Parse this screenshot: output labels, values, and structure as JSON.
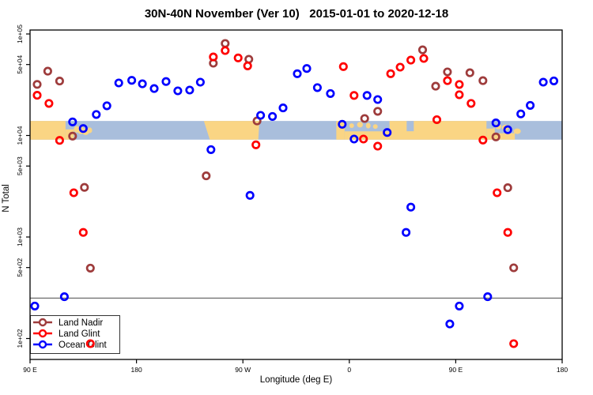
{
  "chart_data": {
    "type": "scatter",
    "title": "30N-40N November (Ver 10)   2015-01-01 to 2020-12-18",
    "xlabel": "Longitude (deg E)",
    "ylabel": "N Total",
    "x_axis": {
      "min": 90,
      "max": 540,
      "note": "longitude axis wraps eastward: 90E to 180, 90W, 0, 90E, 180",
      "ticks": [
        {
          "lon": 90,
          "label": "90 E"
        },
        {
          "lon": 180,
          "label": "180"
        },
        {
          "lon": 270,
          "label": "90 W"
        },
        {
          "lon": 360,
          "label": "0"
        },
        {
          "lon": 450,
          "label": "90 E"
        },
        {
          "lon": 540,
          "label": "180"
        }
      ]
    },
    "y_axis": {
      "scale": "log",
      "range": [
        62,
        110000
      ],
      "ticks": [
        {
          "value": 100000,
          "label": "1e+05"
        },
        {
          "value": 50000,
          "label": "5e+04"
        },
        {
          "value": 10000,
          "label": "1e+04"
        },
        {
          "value": 5000,
          "label": "5e+03"
        },
        {
          "value": 1000,
          "label": "1e+03"
        },
        {
          "value": 500,
          "label": "5e+02"
        },
        {
          "value": 100,
          "label": "1e+02"
        }
      ]
    },
    "threshold_line": {
      "value": 250,
      "color": "#6E6E6E"
    },
    "map_band": {
      "value_top": 13900,
      "value_bottom": 9100,
      "ocean_color": "#A9BEDC",
      "land_color": "#FAD584",
      "land_shapes": [
        {
          "type": "band",
          "lon0": 90,
          "lon1": 120,
          "f0": 0,
          "f1": 1
        },
        {
          "type": "band",
          "lon0": 120,
          "lon1": 127,
          "f0": 0.45,
          "f1": 1
        },
        {
          "type": "island",
          "lon": 129.5,
          "f": 0.45,
          "w": 2.5,
          "h": 0.35
        },
        {
          "type": "island",
          "lon": 133,
          "f": 0.5,
          "w": 3,
          "h": 0.4
        },
        {
          "type": "island",
          "lon": 137,
          "f": 0.58,
          "w": 3,
          "h": 0.35
        },
        {
          "type": "island",
          "lon": 140.5,
          "f": 0.5,
          "w": 2,
          "h": 0.3
        },
        {
          "type": "trap",
          "lon0t": 237,
          "lon1t": 284,
          "lon0b": 242,
          "lon1b": 283
        },
        {
          "type": "band",
          "lon0": 349,
          "lon1": 356,
          "f0": 0,
          "f1": 1
        },
        {
          "type": "band",
          "lon0": 356,
          "lon1": 394,
          "f0": 0.5,
          "f1": 1,
          "jag": true
        },
        {
          "type": "island",
          "lon": 362,
          "f": 0.25,
          "w": 2,
          "h": 0.25
        },
        {
          "type": "island",
          "lon": 369,
          "f": 0.2,
          "w": 2.5,
          "h": 0.3
        },
        {
          "type": "island",
          "lon": 376,
          "f": 0.25,
          "w": 2,
          "h": 0.3
        },
        {
          "type": "island",
          "lon": 382,
          "f": 0.3,
          "w": 2,
          "h": 0.25
        },
        {
          "type": "band",
          "lon0": 394,
          "lon1": 476,
          "f0": 0,
          "f1": 1
        },
        {
          "type": "water",
          "lon0": 408.5,
          "lon1": 414.5,
          "f0": 0,
          "f1": 0.55
        },
        {
          "type": "band",
          "lon0": 476,
          "lon1": 483,
          "f0": 0.35,
          "f1": 1,
          "jag": true
        },
        {
          "type": "band",
          "lon0": 483,
          "lon1": 500,
          "f0": 0.6,
          "f1": 1,
          "jag": true
        },
        {
          "type": "island",
          "lon": 486,
          "f": 0.3,
          "w": 2.5,
          "h": 0.3
        },
        {
          "type": "island",
          "lon": 492,
          "f": 0.35,
          "w": 3,
          "h": 0.3
        },
        {
          "type": "island",
          "lon": 502,
          "f": 0.55,
          "w": 3,
          "h": 0.3
        }
      ]
    },
    "legend": {
      "entries": [
        {
          "label": "Land Nadir",
          "color": "#9E3C3C"
        },
        {
          "label": "Land Glint",
          "color": "#FF0000"
        },
        {
          "label": "Ocean Glint",
          "color": "#0000FF"
        }
      ]
    },
    "series": [
      {
        "name": "Land Nadir",
        "color": "#9E3C3C",
        "points": [
          [
            96,
            31900
          ],
          [
            105,
            43000
          ],
          [
            115,
            34400
          ],
          [
            126,
            9860
          ],
          [
            136,
            3080
          ],
          [
            141,
            494
          ],
          [
            239,
            4000
          ],
          [
            245,
            51500
          ],
          [
            255,
            80700
          ],
          [
            275,
            56400
          ],
          [
            282,
            13900
          ],
          [
            373,
            14700
          ],
          [
            384,
            17300
          ],
          [
            422,
            69800
          ],
          [
            433,
            30600
          ],
          [
            443,
            42300
          ],
          [
            462,
            41500
          ],
          [
            473,
            34700
          ],
          [
            484,
            9690
          ],
          [
            494,
            3060
          ],
          [
            499,
            497
          ]
        ]
      },
      {
        "name": "Land Glint",
        "color": "#FF0000",
        "points": [
          [
            96,
            24900
          ],
          [
            106,
            20700
          ],
          [
            115,
            8950
          ],
          [
            127,
            2730
          ],
          [
            135,
            1110
          ],
          [
            141,
            89
          ],
          [
            245,
            59400
          ],
          [
            255,
            68700
          ],
          [
            266,
            58100
          ],
          [
            274,
            48500
          ],
          [
            281,
            8090
          ],
          [
            355,
            47700
          ],
          [
            364,
            24800
          ],
          [
            372,
            9230
          ],
          [
            384,
            7850
          ],
          [
            395,
            40600
          ],
          [
            403,
            47100
          ],
          [
            412,
            55300
          ],
          [
            423,
            57400
          ],
          [
            434,
            14300
          ],
          [
            443,
            34700
          ],
          [
            453,
            31800
          ],
          [
            453,
            25200
          ],
          [
            463,
            20700
          ],
          [
            473,
            9010
          ],
          [
            485,
            2730
          ],
          [
            494,
            1110
          ],
          [
            499,
            89
          ]
        ]
      },
      {
        "name": "Ocean Glint",
        "color": "#0000FF",
        "points": [
          [
            94,
            209
          ],
          [
            119,
            258
          ],
          [
            126,
            13600
          ],
          [
            135,
            11700
          ],
          [
            146,
            16100
          ],
          [
            155,
            19600
          ],
          [
            165,
            32900
          ],
          [
            176,
            34900
          ],
          [
            185,
            32300
          ],
          [
            195,
            29000
          ],
          [
            205,
            34000
          ],
          [
            215,
            27500
          ],
          [
            225,
            28000
          ],
          [
            234,
            33500
          ],
          [
            243,
            7260
          ],
          [
            276,
            2570
          ],
          [
            285,
            15800
          ],
          [
            295,
            15400
          ],
          [
            304,
            18700
          ],
          [
            316,
            40600
          ],
          [
            324,
            45700
          ],
          [
            333,
            29600
          ],
          [
            344,
            25900
          ],
          [
            354,
            12900
          ],
          [
            364,
            9230
          ],
          [
            375,
            24800
          ],
          [
            384,
            22600
          ],
          [
            392,
            10700
          ],
          [
            408,
            1110
          ],
          [
            412,
            1970
          ],
          [
            445,
            139
          ],
          [
            453,
            209
          ],
          [
            477,
            258
          ],
          [
            484,
            13300
          ],
          [
            494,
            11400
          ],
          [
            505,
            16300
          ],
          [
            513,
            19800
          ],
          [
            524,
            33500
          ],
          [
            533,
            34500
          ]
        ]
      }
    ]
  }
}
